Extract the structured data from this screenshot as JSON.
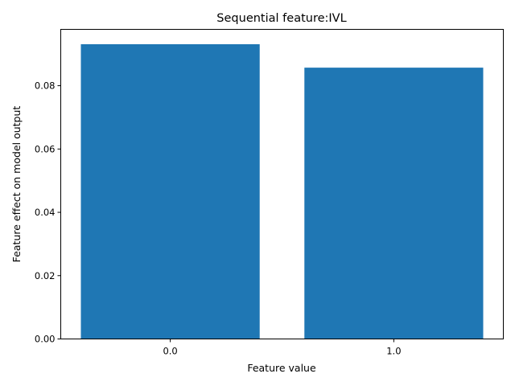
{
  "chart_data": {
    "type": "bar",
    "title": "Sequential feature:IVL",
    "xlabel": "Feature value",
    "ylabel": "Feature effect on model output",
    "categories": [
      "0.0",
      "1.0"
    ],
    "values": [
      0.0931,
      0.0857
    ],
    "ylim": [
      0,
      0.0978
    ],
    "yticks": [
      0.0,
      0.02,
      0.04,
      0.06,
      0.08
    ],
    "ytick_labels": [
      "0.00",
      "0.02",
      "0.04",
      "0.06",
      "0.08"
    ],
    "bar_color": "#1f77b4",
    "grid": false
  }
}
